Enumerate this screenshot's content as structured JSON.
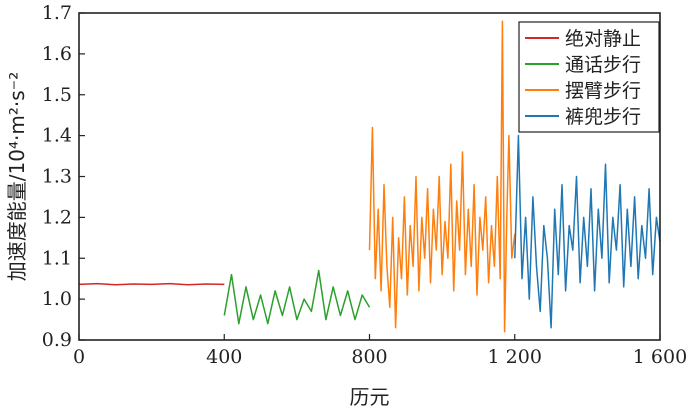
{
  "chart_data": {
    "type": "line",
    "xlabel": "历元",
    "ylabel": "加速度能量/10⁴·m²·s⁻²",
    "xlim": [
      0,
      1600
    ],
    "ylim": [
      0.9,
      1.7
    ],
    "xticks": [
      0,
      400,
      800,
      1200,
      1600
    ],
    "xtick_labels": [
      "0",
      "400",
      "800",
      "1 200",
      "1 600"
    ],
    "yticks": [
      0.9,
      1.0,
      1.1,
      1.2,
      1.3,
      1.4,
      1.5,
      1.6,
      1.7
    ],
    "ytick_labels": [
      "0.9",
      "1.0",
      "1.1",
      "1.2",
      "1.3",
      "1.4",
      "1.5",
      "1.6",
      "1.7"
    ],
    "legend_position": "top-right",
    "series": [
      {
        "name": "绝对静止",
        "color": "#d62728",
        "x": [
          0,
          50,
          100,
          150,
          200,
          250,
          300,
          350,
          400
        ],
        "values": [
          1.036,
          1.038,
          1.035,
          1.037,
          1.036,
          1.038,
          1.035,
          1.037,
          1.036
        ]
      },
      {
        "name": "通话步行",
        "color": "#2ca02c",
        "x": [
          400,
          420,
          440,
          460,
          480,
          500,
          520,
          540,
          560,
          580,
          600,
          620,
          640,
          660,
          680,
          700,
          720,
          740,
          760,
          780,
          800
        ],
        "values": [
          0.96,
          1.06,
          0.94,
          1.03,
          0.95,
          1.01,
          0.94,
          1.02,
          0.96,
          1.03,
          0.95,
          1.0,
          0.97,
          1.07,
          0.95,
          1.03,
          0.96,
          1.02,
          0.95,
          1.01,
          0.98
        ]
      },
      {
        "name": "摆臂步行",
        "color": "#ff7f0e",
        "x": [
          800,
          808,
          816,
          824,
          832,
          840,
          848,
          856,
          864,
          872,
          880,
          888,
          896,
          904,
          912,
          920,
          928,
          936,
          944,
          952,
          960,
          968,
          976,
          984,
          992,
          1000,
          1008,
          1016,
          1024,
          1032,
          1040,
          1048,
          1056,
          1064,
          1072,
          1080,
          1088,
          1096,
          1104,
          1112,
          1120,
          1128,
          1136,
          1144,
          1152,
          1160,
          1166,
          1172,
          1178,
          1184,
          1192,
          1200
        ],
        "values": [
          1.12,
          1.42,
          1.05,
          1.22,
          1.02,
          1.28,
          1.08,
          0.98,
          1.2,
          0.93,
          1.15,
          1.05,
          1.25,
          1.01,
          1.18,
          1.08,
          1.3,
          1.02,
          1.2,
          1.1,
          1.27,
          1.04,
          1.22,
          1.12,
          1.3,
          1.06,
          1.19,
          1.1,
          1.33,
          1.02,
          1.24,
          1.12,
          1.36,
          1.06,
          1.22,
          1.08,
          1.28,
          1.01,
          1.2,
          1.12,
          1.25,
          1.04,
          1.18,
          1.08,
          1.3,
          1.05,
          1.68,
          0.92,
          1.2,
          1.4,
          1.1,
          1.16
        ]
      },
      {
        "name": "裤兜步行",
        "color": "#1f77b4",
        "x": [
          1200,
          1210,
          1220,
          1230,
          1240,
          1250,
          1260,
          1270,
          1280,
          1290,
          1300,
          1310,
          1320,
          1330,
          1340,
          1350,
          1360,
          1370,
          1380,
          1390,
          1400,
          1410,
          1420,
          1430,
          1440,
          1450,
          1460,
          1470,
          1480,
          1490,
          1500,
          1510,
          1520,
          1530,
          1540,
          1550,
          1560,
          1570,
          1580,
          1590,
          1600
        ],
        "values": [
          1.1,
          1.4,
          1.05,
          1.2,
          1.0,
          1.25,
          1.08,
          0.97,
          1.18,
          1.1,
          0.93,
          1.22,
          1.06,
          1.28,
          1.02,
          1.18,
          1.12,
          1.3,
          1.04,
          1.2,
          1.08,
          1.27,
          1.02,
          1.22,
          1.1,
          1.33,
          1.04,
          1.2,
          1.12,
          1.28,
          1.03,
          1.22,
          1.08,
          1.25,
          1.05,
          1.18,
          1.1,
          1.27,
          1.06,
          1.2,
          1.14
        ]
      }
    ]
  }
}
